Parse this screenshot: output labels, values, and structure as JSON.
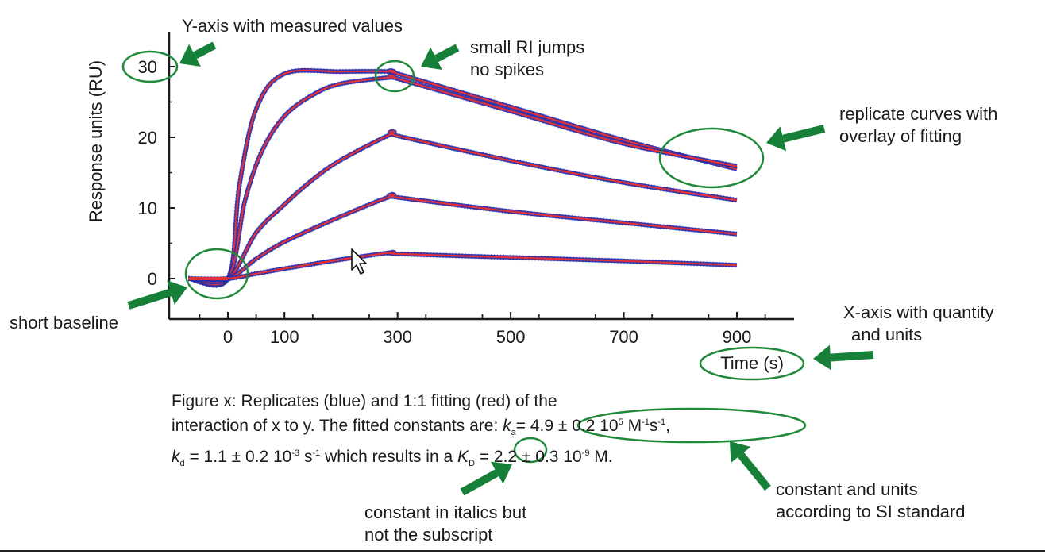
{
  "chart_data": {
    "type": "line",
    "ylabel": "Response units (RU)",
    "xlabel": "Time (s)",
    "xlim": [
      -70,
      1000
    ],
    "ylim": [
      -3,
      35
    ],
    "x_ticks": [
      0,
      100,
      300,
      500,
      700,
      900
    ],
    "y_ticks": [
      0,
      10,
      20,
      30
    ],
    "grid": false,
    "colors": {
      "replicate": "#2b2fa8",
      "fit": "#e0303a",
      "annotation": "#1f8a3a",
      "arrow": "#178038"
    },
    "series": [
      {
        "replicate": [
          [
            -70,
            0
          ],
          [
            0,
            0
          ],
          [
            20,
            13
          ],
          [
            50,
            24
          ],
          [
            100,
            29
          ],
          [
            200,
            29.3
          ],
          [
            290,
            29.3
          ],
          [
            300,
            29.0
          ],
          [
            500,
            24.3
          ],
          [
            700,
            19.6
          ],
          [
            900,
            15.5
          ]
        ]
      },
      {
        "replicate": [
          [
            -70,
            0
          ],
          [
            0,
            0
          ],
          [
            30,
            11
          ],
          [
            60,
            18
          ],
          [
            100,
            23
          ],
          [
            150,
            26
          ],
          [
            200,
            27.6
          ],
          [
            290,
            28.5
          ],
          [
            300,
            28.3
          ],
          [
            500,
            23.7
          ],
          [
            700,
            19.1
          ],
          [
            900,
            15.9
          ]
        ]
      },
      {
        "replicate": [
          [
            -70,
            0
          ],
          [
            0,
            0
          ],
          [
            50,
            6.5
          ],
          [
            100,
            10.5
          ],
          [
            150,
            14
          ],
          [
            200,
            16.8
          ],
          [
            290,
            20.5
          ],
          [
            300,
            20.2
          ],
          [
            500,
            16.7
          ],
          [
            700,
            13.6
          ],
          [
            900,
            11.1
          ]
        ]
      },
      {
        "replicate": [
          [
            -70,
            0
          ],
          [
            0,
            0
          ],
          [
            50,
            2.8
          ],
          [
            100,
            5.2
          ],
          [
            200,
            8.8
          ],
          [
            290,
            11.7
          ],
          [
            300,
            11.5
          ],
          [
            500,
            9.5
          ],
          [
            700,
            7.9
          ],
          [
            900,
            6.3
          ]
        ]
      },
      {
        "replicate": [
          [
            -70,
            0
          ],
          [
            0,
            0
          ],
          [
            50,
            0.7
          ],
          [
            100,
            1.4
          ],
          [
            200,
            2.7
          ],
          [
            290,
            3.7
          ],
          [
            300,
            3.5
          ],
          [
            500,
            3.0
          ],
          [
            700,
            2.5
          ],
          [
            900,
            1.9
          ]
        ]
      }
    ]
  },
  "annotations": {
    "y_axis": "Y-axis with measured values",
    "ri_line1": "small RI jumps",
    "ri_line2": "no spikes",
    "replicate_line1": "replicate curves with",
    "replicate_line2": "overlay of fitting",
    "baseline": "short baseline",
    "x_axis_line1": "X-axis with quantity",
    "x_axis_line2": "and units",
    "si_line1": "constant and units",
    "si_line2": "according to SI standard",
    "italics_line1": "constant in italics but",
    "italics_line2": "not the subscript"
  },
  "caption": {
    "line1": "Figure x: Replicates (blue) and 1:1 fitting (red) of the",
    "line2_a": "interaction of x to y. The fitted constants are: ",
    "ka_sym": "k",
    "ka_sub": "a",
    "ka_val": "= 4.9 ± 0.2 10",
    "ka_exp": "5",
    "ka_unit1": " M",
    "ka_unit1_exp": "-1",
    "ka_unit2": "s",
    "ka_unit2_exp": "-1",
    "ka_end": ",",
    "kd_sym": "k",
    "kd_sub": "d",
    "kd_val": " = 1.1 ± 0.2 10",
    "kd_exp": "-3",
    "kd_unit": " s",
    "kd_unit_exp": "-1",
    "kd_text": " which results in a ",
    "KD_sym": "K",
    "KD_sub": "D",
    "KD_val": " = 2.2 ± 0.3 10",
    "KD_exp": "-9",
    "KD_unit": " M."
  }
}
